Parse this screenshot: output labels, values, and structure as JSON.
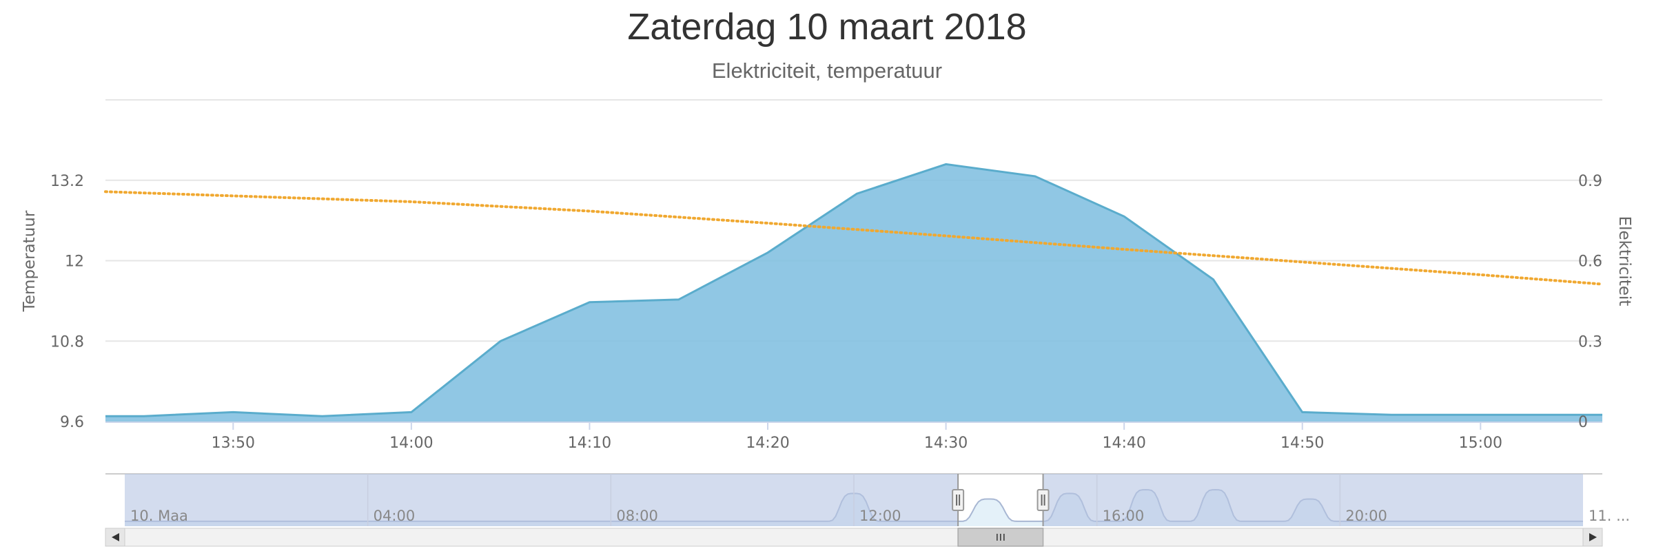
{
  "chart_data": {
    "type": "area",
    "title": "Zaterdag 10 maart 2018",
    "subtitle": "Elektriciteit, temperatuur",
    "x_ticks": [
      "13:50",
      "14:00",
      "14:10",
      "14:20",
      "14:30",
      "14:40",
      "14:50",
      "15:00"
    ],
    "xlim": [
      "13:42:50",
      "15:06:50"
    ],
    "y_left": {
      "label": "Temperatuur",
      "ticks": [
        "9.6",
        "10.8",
        "12",
        "13.2"
      ],
      "range": [
        9.6,
        14.4
      ]
    },
    "y_right": {
      "label": "Elektriciteit",
      "ticks": [
        "0",
        "0.3",
        "0.6",
        "0.9"
      ],
      "range": [
        0,
        1.2
      ]
    },
    "grid": true,
    "series": [
      {
        "name": "Elektriciteit",
        "type": "area",
        "axis": "right",
        "color": "#7cbddf",
        "stroke": "#5aaccc",
        "x": [
          "13:42:50",
          "13:45",
          "13:50",
          "13:55",
          "14:00",
          "14:05",
          "14:10",
          "14:15",
          "14:20",
          "14:25",
          "14:30",
          "14:35",
          "14:40",
          "14:45",
          "14:50",
          "14:55",
          "15:00",
          "15:06:50"
        ],
        "y": [
          0.02,
          0.02,
          0.035,
          0.02,
          0.035,
          0.3,
          0.445,
          0.455,
          0.63,
          0.85,
          0.96,
          0.915,
          0.765,
          0.53,
          0.035,
          0.025,
          0.025,
          0.025
        ]
      },
      {
        "name": "Temperatuur",
        "type": "line",
        "axis": "left",
        "style": "dotted",
        "color": "#f0a830",
        "x": [
          "13:42:50",
          "14:00",
          "14:10",
          "14:20",
          "14:30",
          "14:40",
          "14:50",
          "15:00",
          "15:06:50"
        ],
        "y": [
          13.03,
          12.88,
          12.74,
          12.56,
          12.37,
          12.17,
          11.98,
          11.79,
          11.65
        ]
      }
    ],
    "navigator": {
      "x_ticks": [
        "10. Maa",
        "04:00",
        "08:00",
        "12:00",
        "16:00",
        "20:00",
        "11. ..."
      ],
      "selected_range": [
        "13:42:50",
        "15:06:50"
      ]
    }
  }
}
